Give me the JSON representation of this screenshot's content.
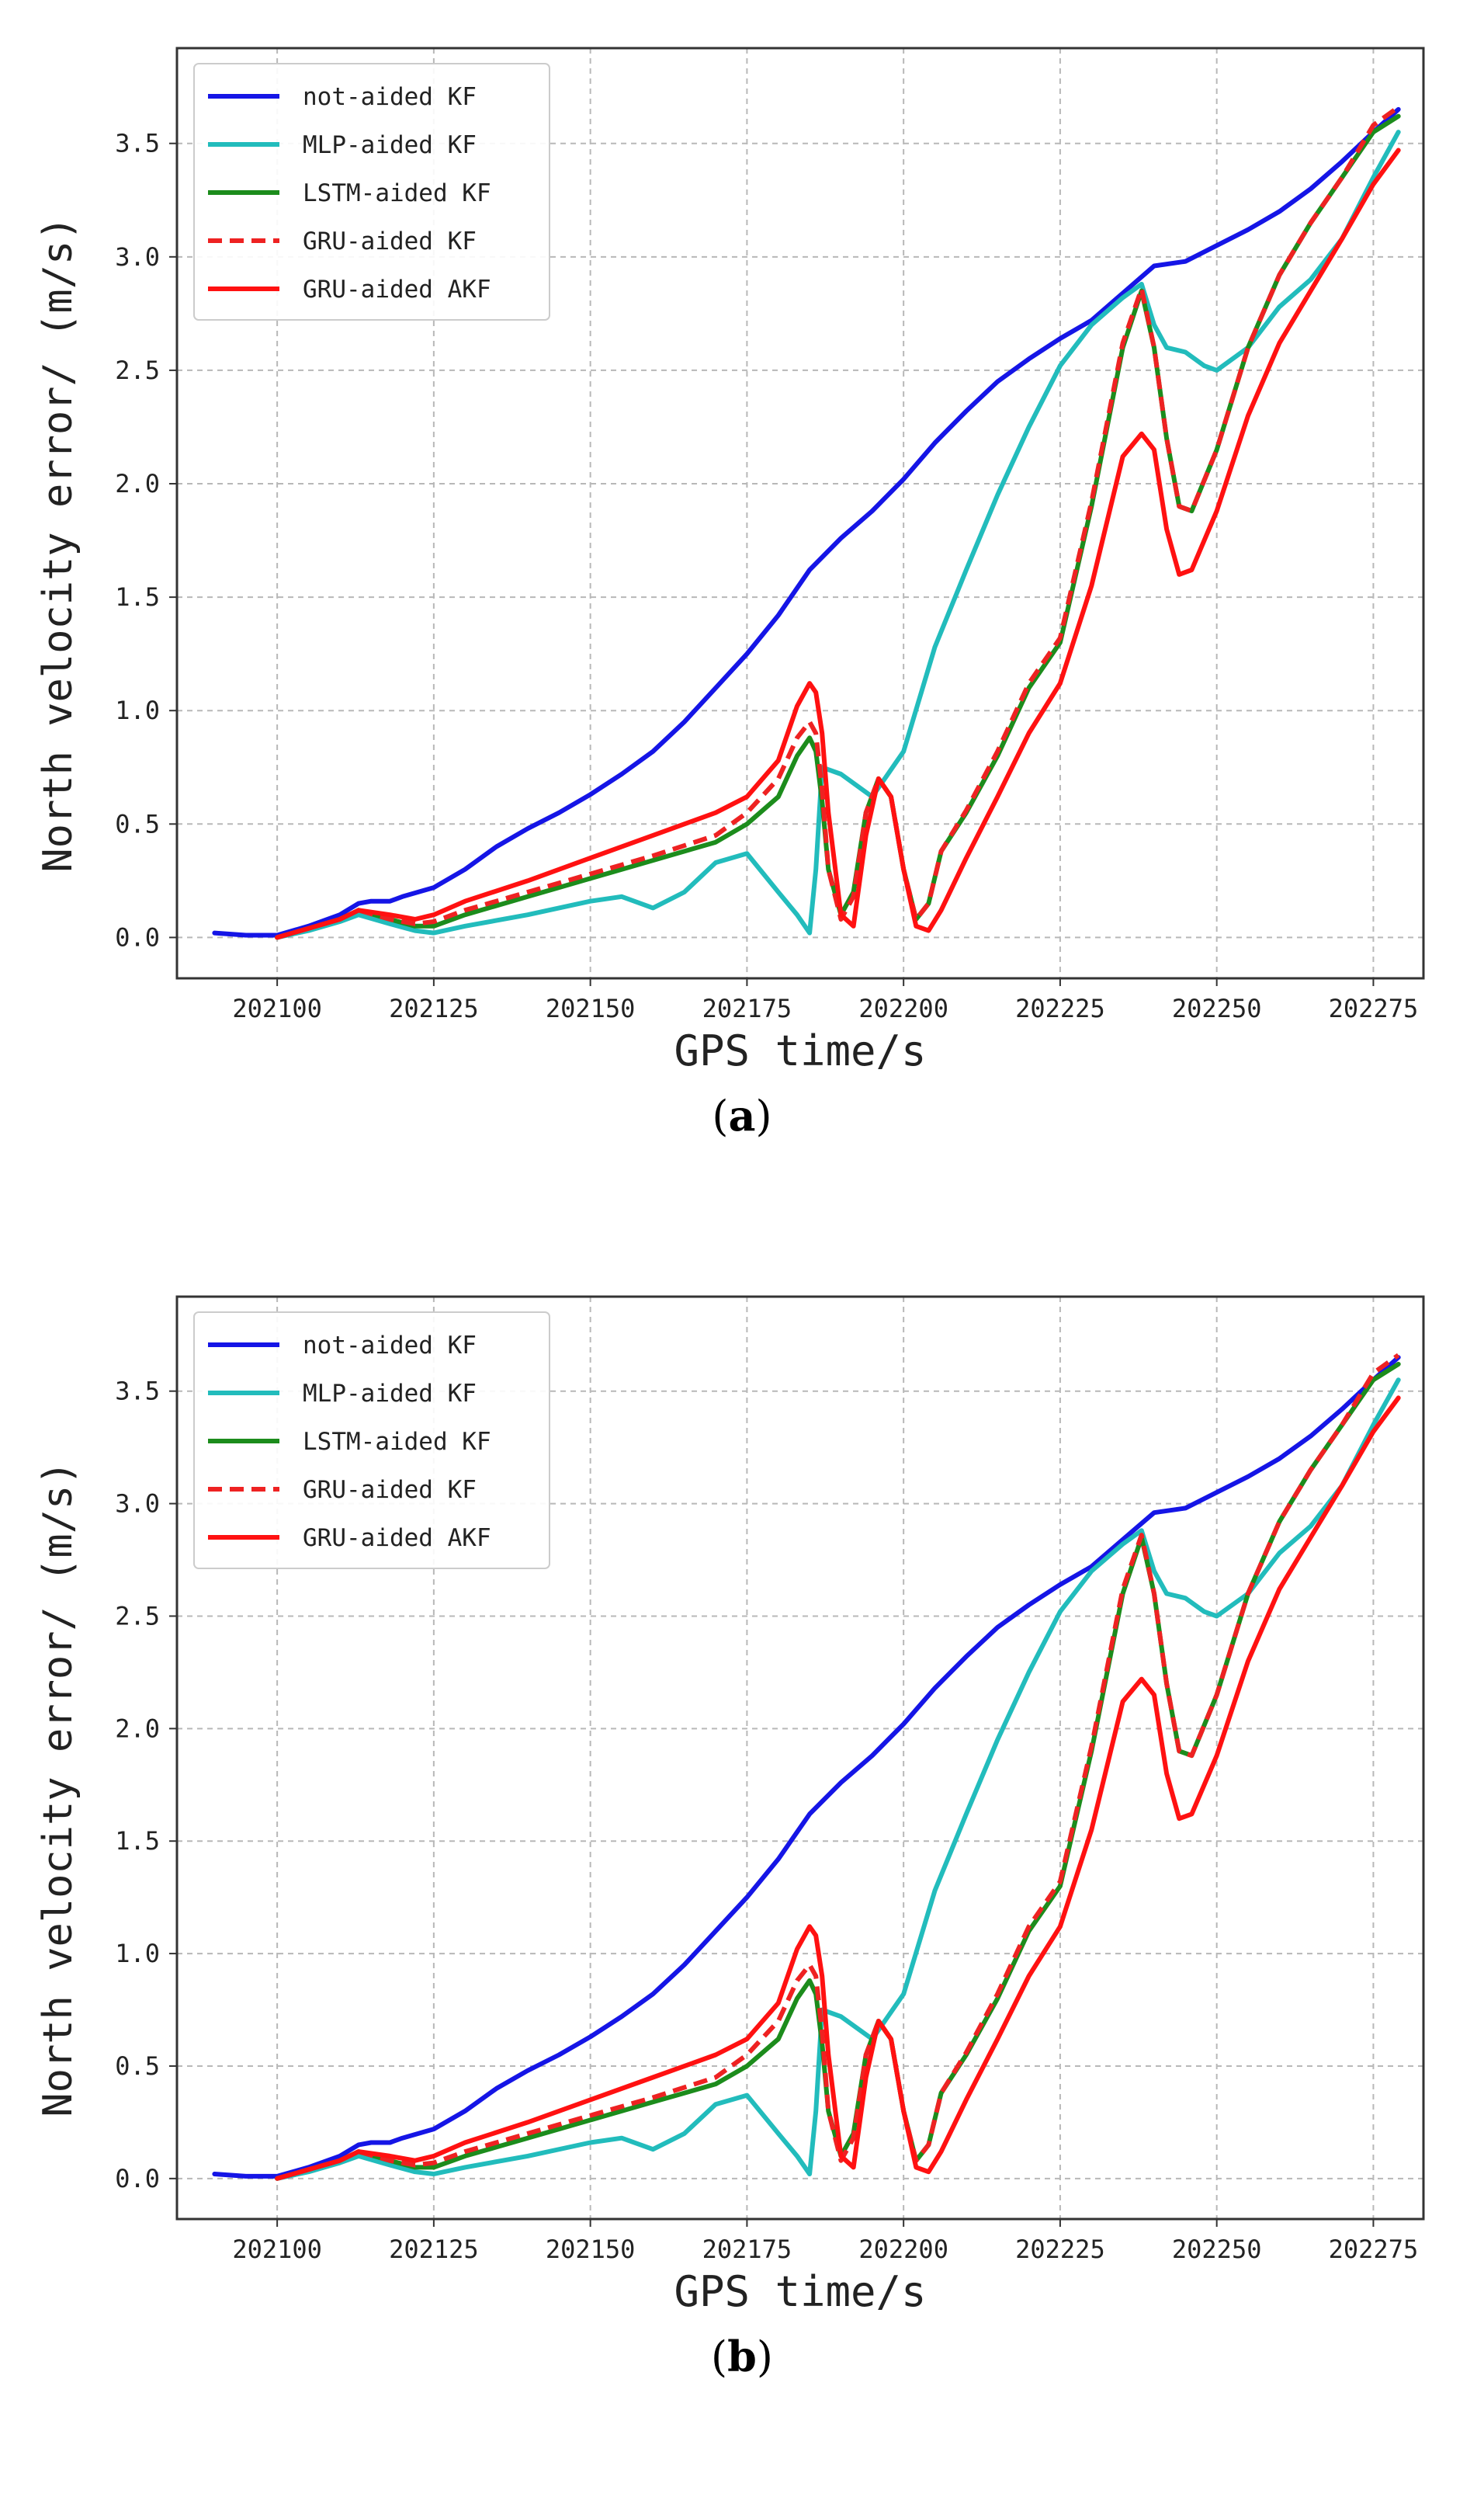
{
  "chart_data": [
    {
      "type": "line",
      "panel_label": "a",
      "xlabel": "GPS time/s",
      "ylabel": "North velocity error/ (m/s)",
      "xlim": [
        202084,
        202283
      ],
      "ylim": [
        -0.18,
        3.92
      ],
      "xticks": [
        202100,
        202125,
        202150,
        202175,
        202200,
        202225,
        202250,
        202275
      ],
      "yticks": [
        0.0,
        0.5,
        1.0,
        1.5,
        2.0,
        2.5,
        3.0,
        3.5
      ],
      "ytick_labels": [
        "0.0",
        "0.5",
        "1.0",
        "1.5",
        "2.0",
        "2.5",
        "3.0",
        "3.5"
      ],
      "grid": true,
      "legend_position": "top-left",
      "series": [
        {
          "name": "not-aided KF",
          "color": "#1515e6",
          "style": "solid",
          "x": [
            202090,
            202095,
            202100,
            202105,
            202110,
            202113,
            202115,
            202118,
            202120,
            202125,
            202130,
            202135,
            202140,
            202145,
            202150,
            202155,
            202160,
            202165,
            202170,
            202175,
            202180,
            202185,
            202190,
            202195,
            202200,
            202205,
            202210,
            202215,
            202220,
            202225,
            202230,
            202235,
            202240,
            202245,
            202250,
            202255,
            202260,
            202265,
            202270,
            202275,
            202279
          ],
          "y": [
            0.02,
            0.01,
            0.01,
            0.05,
            0.1,
            0.15,
            0.16,
            0.16,
            0.18,
            0.22,
            0.3,
            0.4,
            0.48,
            0.55,
            0.63,
            0.72,
            0.82,
            0.95,
            1.1,
            1.25,
            1.42,
            1.62,
            1.76,
            1.88,
            2.02,
            2.18,
            2.32,
            2.45,
            2.55,
            2.64,
            2.72,
            2.84,
            2.96,
            2.98,
            3.05,
            3.12,
            3.2,
            3.3,
            3.42,
            3.55,
            3.65
          ]
        },
        {
          "name": "MLP-aided KF",
          "color": "#22bcbc",
          "style": "solid",
          "x": [
            202100,
            202105,
            202110,
            202113,
            202118,
            202122,
            202125,
            202130,
            202140,
            202150,
            202155,
            202160,
            202165,
            202170,
            202175,
            202180,
            202183,
            202185,
            202186,
            202187,
            202190,
            202195,
            202200,
            202205,
            202210,
            202215,
            202220,
            202225,
            202230,
            202235,
            202238,
            202240,
            202242,
            202245,
            202248,
            202250,
            202255,
            202260,
            202265,
            202270,
            202275,
            202279
          ],
          "y": [
            0.0,
            0.03,
            0.07,
            0.1,
            0.06,
            0.03,
            0.02,
            0.05,
            0.1,
            0.16,
            0.18,
            0.13,
            0.2,
            0.33,
            0.37,
            0.2,
            0.1,
            0.02,
            0.3,
            0.75,
            0.72,
            0.62,
            0.82,
            1.28,
            1.62,
            1.95,
            2.25,
            2.52,
            2.7,
            2.82,
            2.88,
            2.7,
            2.6,
            2.58,
            2.52,
            2.5,
            2.6,
            2.78,
            2.9,
            3.08,
            3.35,
            3.55
          ]
        },
        {
          "name": "LSTM-aided KF",
          "color": "#1c8c1c",
          "style": "solid",
          "x": [
            202100,
            202105,
            202110,
            202113,
            202118,
            202122,
            202125,
            202130,
            202140,
            202150,
            202160,
            202170,
            202175,
            202180,
            202183,
            202185,
            202186,
            202187,
            202188,
            202190,
            202192,
            202194,
            202196,
            202198,
            202200,
            202202,
            202204,
            202206,
            202210,
            202215,
            202220,
            202225,
            202230,
            202235,
            202238,
            202240,
            202242,
            202244,
            202246,
            202250,
            202255,
            202260,
            202265,
            202270,
            202275,
            202279
          ],
          "y": [
            0.0,
            0.04,
            0.08,
            0.12,
            0.08,
            0.05,
            0.05,
            0.1,
            0.18,
            0.26,
            0.34,
            0.42,
            0.5,
            0.62,
            0.8,
            0.88,
            0.82,
            0.6,
            0.3,
            0.1,
            0.2,
            0.55,
            0.7,
            0.62,
            0.3,
            0.08,
            0.15,
            0.38,
            0.55,
            0.8,
            1.1,
            1.3,
            1.9,
            2.6,
            2.85,
            2.6,
            2.2,
            1.9,
            1.88,
            2.15,
            2.6,
            2.92,
            3.15,
            3.35,
            3.55,
            3.62
          ]
        },
        {
          "name": "GRU-aided KF",
          "color": "#ee2222",
          "style": "dashed",
          "x": [
            202100,
            202105,
            202110,
            202113,
            202118,
            202122,
            202125,
            202130,
            202140,
            202150,
            202160,
            202170,
            202175,
            202180,
            202183,
            202185,
            202186,
            202187,
            202188,
            202190,
            202192,
            202194,
            202196,
            202198,
            202200,
            202202,
            202204,
            202206,
            202210,
            202215,
            202220,
            202225,
            202230,
            202235,
            202238,
            202240,
            202242,
            202244,
            202246,
            202250,
            202255,
            202260,
            202265,
            202270,
            202275,
            202279
          ],
          "y": [
            0.0,
            0.04,
            0.08,
            0.12,
            0.08,
            0.06,
            0.07,
            0.12,
            0.2,
            0.28,
            0.36,
            0.45,
            0.55,
            0.7,
            0.88,
            0.95,
            0.9,
            0.65,
            0.3,
            0.08,
            0.18,
            0.55,
            0.7,
            0.62,
            0.3,
            0.08,
            0.15,
            0.38,
            0.56,
            0.82,
            1.12,
            1.32,
            1.92,
            2.62,
            2.86,
            2.6,
            2.2,
            1.9,
            1.88,
            2.15,
            2.6,
            2.92,
            3.15,
            3.35,
            3.58,
            3.66
          ]
        },
        {
          "name": "GRU-aided AKF",
          "color": "#ff1111",
          "style": "solid",
          "x": [
            202100,
            202105,
            202110,
            202113,
            202118,
            202122,
            202125,
            202130,
            202140,
            202150,
            202160,
            202170,
            202175,
            202180,
            202183,
            202185,
            202186,
            202187,
            202188,
            202190,
            202192,
            202194,
            202196,
            202198,
            202200,
            202202,
            202204,
            202206,
            202210,
            202215,
            202220,
            202225,
            202230,
            202235,
            202238,
            202240,
            202242,
            202244,
            202246,
            202250,
            202255,
            202260,
            202265,
            202270,
            202275,
            202279
          ],
          "y": [
            0.0,
            0.04,
            0.08,
            0.12,
            0.1,
            0.08,
            0.1,
            0.16,
            0.25,
            0.35,
            0.45,
            0.55,
            0.62,
            0.78,
            1.02,
            1.12,
            1.08,
            0.9,
            0.55,
            0.1,
            0.05,
            0.45,
            0.7,
            0.62,
            0.3,
            0.05,
            0.03,
            0.12,
            0.35,
            0.62,
            0.9,
            1.12,
            1.55,
            2.12,
            2.22,
            2.15,
            1.8,
            1.6,
            1.62,
            1.88,
            2.3,
            2.62,
            2.85,
            3.08,
            3.32,
            3.47
          ]
        }
      ]
    },
    {
      "type": "line",
      "panel_label": "b",
      "xlabel": "GPS time/s",
      "ylabel": "North velocity error/ (m/s)",
      "xlim": [
        202084,
        202283
      ],
      "ylim": [
        -0.18,
        3.92
      ],
      "xticks": [
        202100,
        202125,
        202150,
        202175,
        202200,
        202225,
        202250,
        202275
      ],
      "yticks": [
        0.0,
        0.5,
        1.0,
        1.5,
        2.0,
        2.5,
        3.0,
        3.5
      ],
      "ytick_labels": [
        "0.0",
        "0.5",
        "1.0",
        "1.5",
        "2.0",
        "2.5",
        "3.0",
        "3.5"
      ],
      "grid": true,
      "legend_position": "top-left",
      "series": [
        {
          "name": "not-aided KF",
          "color": "#1515e6",
          "style": "solid",
          "x": [
            202090,
            202095,
            202100,
            202105,
            202110,
            202113,
            202115,
            202118,
            202120,
            202125,
            202130,
            202135,
            202140,
            202145,
            202150,
            202155,
            202160,
            202165,
            202170,
            202175,
            202180,
            202185,
            202190,
            202195,
            202200,
            202205,
            202210,
            202215,
            202220,
            202225,
            202230,
            202235,
            202240,
            202245,
            202250,
            202255,
            202260,
            202265,
            202270,
            202275,
            202279
          ],
          "y": [
            0.02,
            0.01,
            0.01,
            0.05,
            0.1,
            0.15,
            0.16,
            0.16,
            0.18,
            0.22,
            0.3,
            0.4,
            0.48,
            0.55,
            0.63,
            0.72,
            0.82,
            0.95,
            1.1,
            1.25,
            1.42,
            1.62,
            1.76,
            1.88,
            2.02,
            2.18,
            2.32,
            2.45,
            2.55,
            2.64,
            2.72,
            2.84,
            2.96,
            2.98,
            3.05,
            3.12,
            3.2,
            3.3,
            3.42,
            3.55,
            3.65
          ]
        },
        {
          "name": "MLP-aided KF",
          "color": "#22bcbc",
          "style": "solid",
          "x": [
            202100,
            202105,
            202110,
            202113,
            202118,
            202122,
            202125,
            202130,
            202140,
            202150,
            202155,
            202160,
            202165,
            202170,
            202175,
            202180,
            202183,
            202185,
            202186,
            202187,
            202190,
            202195,
            202200,
            202205,
            202210,
            202215,
            202220,
            202225,
            202230,
            202235,
            202238,
            202240,
            202242,
            202245,
            202248,
            202250,
            202255,
            202260,
            202265,
            202270,
            202275,
            202279
          ],
          "y": [
            0.0,
            0.03,
            0.07,
            0.1,
            0.06,
            0.03,
            0.02,
            0.05,
            0.1,
            0.16,
            0.18,
            0.13,
            0.2,
            0.33,
            0.37,
            0.2,
            0.1,
            0.02,
            0.3,
            0.75,
            0.72,
            0.62,
            0.82,
            1.28,
            1.62,
            1.95,
            2.25,
            2.52,
            2.7,
            2.82,
            2.88,
            2.7,
            2.6,
            2.58,
            2.52,
            2.5,
            2.6,
            2.78,
            2.9,
            3.08,
            3.35,
            3.55
          ]
        },
        {
          "name": "LSTM-aided KF",
          "color": "#1c8c1c",
          "style": "solid",
          "x": [
            202100,
            202105,
            202110,
            202113,
            202118,
            202122,
            202125,
            202130,
            202140,
            202150,
            202160,
            202170,
            202175,
            202180,
            202183,
            202185,
            202186,
            202187,
            202188,
            202190,
            202192,
            202194,
            202196,
            202198,
            202200,
            202202,
            202204,
            202206,
            202210,
            202215,
            202220,
            202225,
            202230,
            202235,
            202238,
            202240,
            202242,
            202244,
            202246,
            202250,
            202255,
            202260,
            202265,
            202270,
            202275,
            202279
          ],
          "y": [
            0.0,
            0.04,
            0.08,
            0.12,
            0.08,
            0.05,
            0.05,
            0.1,
            0.18,
            0.26,
            0.34,
            0.42,
            0.5,
            0.62,
            0.8,
            0.88,
            0.82,
            0.6,
            0.3,
            0.1,
            0.2,
            0.55,
            0.7,
            0.62,
            0.3,
            0.08,
            0.15,
            0.38,
            0.55,
            0.8,
            1.1,
            1.3,
            1.9,
            2.6,
            2.85,
            2.6,
            2.2,
            1.9,
            1.88,
            2.15,
            2.6,
            2.92,
            3.15,
            3.35,
            3.55,
            3.62
          ]
        },
        {
          "name": "GRU-aided KF",
          "color": "#ee2222",
          "style": "dashed",
          "x": [
            202100,
            202105,
            202110,
            202113,
            202118,
            202122,
            202125,
            202130,
            202140,
            202150,
            202160,
            202170,
            202175,
            202180,
            202183,
            202185,
            202186,
            202187,
            202188,
            202190,
            202192,
            202194,
            202196,
            202198,
            202200,
            202202,
            202204,
            202206,
            202210,
            202215,
            202220,
            202225,
            202230,
            202235,
            202238,
            202240,
            202242,
            202244,
            202246,
            202250,
            202255,
            202260,
            202265,
            202270,
            202275,
            202279
          ],
          "y": [
            0.0,
            0.04,
            0.08,
            0.12,
            0.08,
            0.06,
            0.07,
            0.12,
            0.2,
            0.28,
            0.36,
            0.45,
            0.55,
            0.7,
            0.88,
            0.95,
            0.9,
            0.65,
            0.3,
            0.08,
            0.18,
            0.55,
            0.7,
            0.62,
            0.3,
            0.08,
            0.15,
            0.38,
            0.56,
            0.82,
            1.12,
            1.32,
            1.92,
            2.62,
            2.86,
            2.6,
            2.2,
            1.9,
            1.88,
            2.15,
            2.6,
            2.92,
            3.15,
            3.35,
            3.58,
            3.66
          ]
        },
        {
          "name": "GRU-aided AKF",
          "color": "#ff1111",
          "style": "solid",
          "x": [
            202100,
            202105,
            202110,
            202113,
            202118,
            202122,
            202125,
            202130,
            202140,
            202150,
            202160,
            202170,
            202175,
            202180,
            202183,
            202185,
            202186,
            202187,
            202188,
            202190,
            202192,
            202194,
            202196,
            202198,
            202200,
            202202,
            202204,
            202206,
            202210,
            202215,
            202220,
            202225,
            202230,
            202235,
            202238,
            202240,
            202242,
            202244,
            202246,
            202250,
            202255,
            202260,
            202265,
            202270,
            202275,
            202279
          ],
          "y": [
            0.0,
            0.04,
            0.08,
            0.12,
            0.1,
            0.08,
            0.1,
            0.16,
            0.25,
            0.35,
            0.45,
            0.55,
            0.62,
            0.78,
            1.02,
            1.12,
            1.08,
            0.9,
            0.55,
            0.1,
            0.05,
            0.45,
            0.7,
            0.62,
            0.3,
            0.05,
            0.03,
            0.12,
            0.35,
            0.62,
            0.9,
            1.12,
            1.55,
            2.12,
            2.22,
            2.15,
            1.8,
            1.6,
            1.62,
            1.88,
            2.3,
            2.62,
            2.85,
            3.08,
            3.32,
            3.47
          ]
        }
      ]
    }
  ]
}
